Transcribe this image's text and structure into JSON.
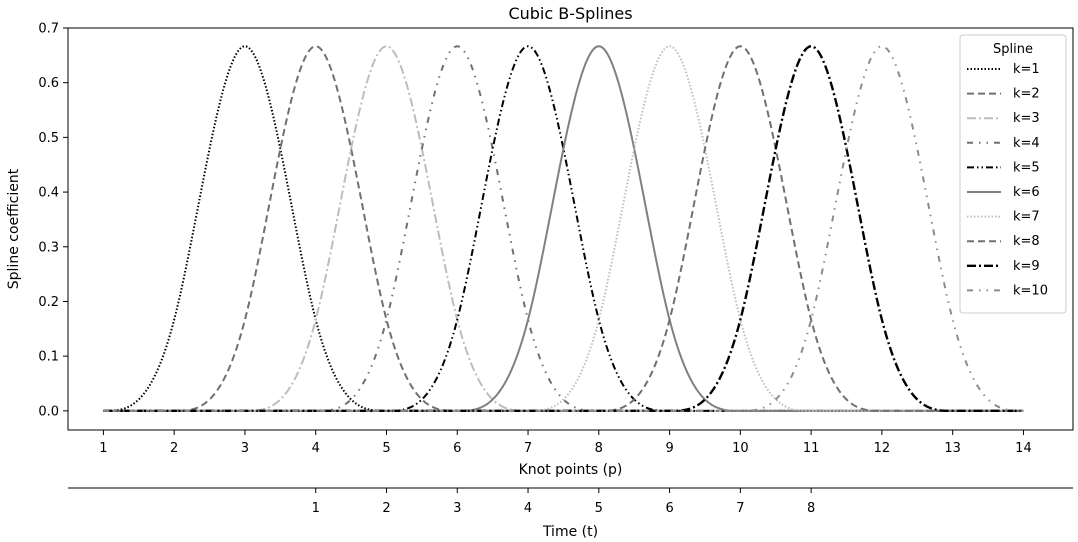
{
  "chart_data": {
    "type": "line",
    "title": "Cubic B-Splines",
    "xlabel": "Knot points (p)",
    "ylabel": "Spline coefficient",
    "secondary_xlabel": "Time (t)",
    "xlim": [
      0.5,
      14.7
    ],
    "ylim": [
      -0.035,
      0.7
    ],
    "x_ticks": [
      1,
      2,
      3,
      4,
      5,
      6,
      7,
      8,
      9,
      10,
      11,
      12,
      13,
      14
    ],
    "y_ticks": [
      0.0,
      0.1,
      0.2,
      0.3,
      0.4,
      0.5,
      0.6,
      0.7
    ],
    "y_tick_labels": [
      "0.0",
      "0.1",
      "0.2",
      "0.3",
      "0.4",
      "0.5",
      "0.6",
      "0.7"
    ],
    "secondary_x_ticks": [
      4,
      5,
      6,
      7,
      8,
      9,
      10,
      11
    ],
    "secondary_x_tick_labels": [
      "1",
      "2",
      "3",
      "4",
      "5",
      "6",
      "7",
      "8"
    ],
    "curve_domain": [
      1,
      14
    ],
    "peak_value": 0.6667,
    "grid": false,
    "legend": {
      "title": "Spline",
      "position": "top-right"
    },
    "series": [
      {
        "name": "k=1",
        "center": 3,
        "color": "#000000",
        "style": "dotted"
      },
      {
        "name": "k=2",
        "center": 4,
        "color": "#707070",
        "style": "dashed"
      },
      {
        "name": "k=3",
        "center": 5,
        "color": "#bdbdbd",
        "style": "dashdot"
      },
      {
        "name": "k=4",
        "center": 6,
        "color": "#707070",
        "style": "dashdotdot-loose"
      },
      {
        "name": "k=5",
        "center": 7,
        "color": "#000000",
        "style": "dashdotdot"
      },
      {
        "name": "k=6",
        "center": 8,
        "color": "#808080",
        "style": "solid"
      },
      {
        "name": "k=7",
        "center": 9,
        "color": "#bdbdbd",
        "style": "dotted"
      },
      {
        "name": "k=8",
        "center": 10,
        "color": "#707070",
        "style": "dashed"
      },
      {
        "name": "k=9",
        "center": 11,
        "color": "#000000",
        "style": "dashdot-thick"
      },
      {
        "name": "k=10",
        "center": 12,
        "color": "#8c8c8c",
        "style": "dashdotdot-loose"
      }
    ]
  }
}
